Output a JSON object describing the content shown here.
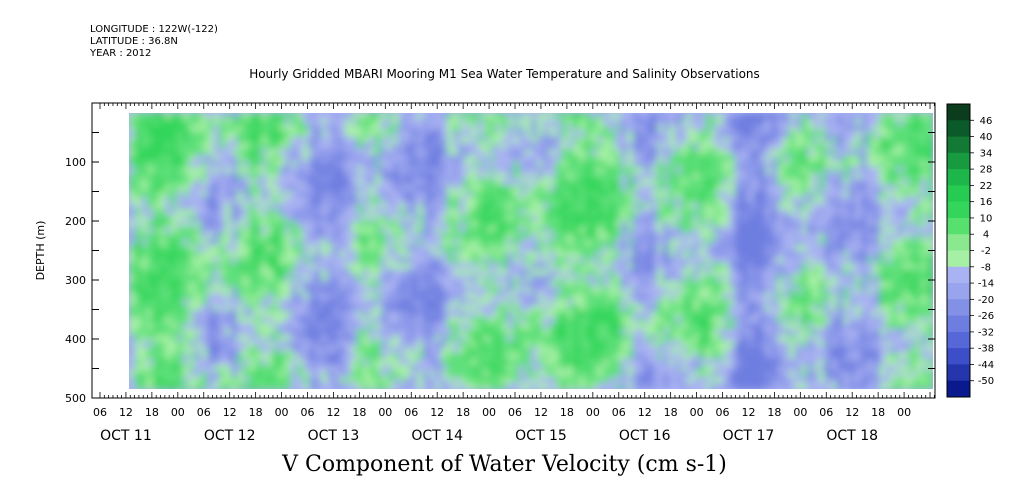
{
  "header": {
    "longitude": "LONGITUDE : 122W(-122)",
    "latitude": "LATITUDE : 36.8N",
    "year": "YEAR : 2012"
  },
  "chart_data": {
    "type": "heatmap",
    "title": "Hourly Gridded MBARI Mooring M1 Sea Water Temperature and Salinity Observations",
    "xlabel": "V Component of Water Velocity (cm s-1)",
    "ylabel": "DEPTH (m)",
    "ylim": [
      500,
      0
    ],
    "y_ticks": [
      100,
      200,
      300,
      400,
      500
    ],
    "x_hour_ticks": [
      "06",
      "12",
      "18",
      "00",
      "06",
      "12",
      "18",
      "00",
      "06",
      "12",
      "18",
      "00",
      "06",
      "12",
      "18",
      "00",
      "06",
      "12",
      "18",
      "00",
      "06",
      "12",
      "18",
      "00",
      "06",
      "12",
      "18",
      "00",
      "06",
      "12",
      "18",
      "00"
    ],
    "x_day_labels": [
      "OCT 11",
      "OCT 12",
      "OCT 13",
      "OCT 14",
      "OCT 15",
      "OCT 16",
      "OCT 17",
      "OCT 18"
    ],
    "colorbar_labels": [
      "46",
      "40",
      "34",
      "28",
      "22",
      "16",
      "10",
      "4",
      "-2",
      "-8",
      "-14",
      "-20",
      "-26",
      "-32",
      "-38",
      "-44",
      "-50"
    ],
    "colormap": {
      "negative_deep": "#0a1a8c",
      "negative_mid": "#6e7ee0",
      "negative_light": "#a9b2f2",
      "positive_light": "#a6f0a6",
      "positive_mid": "#33d65a",
      "positive_deep": "#0b5a2a"
    }
  }
}
